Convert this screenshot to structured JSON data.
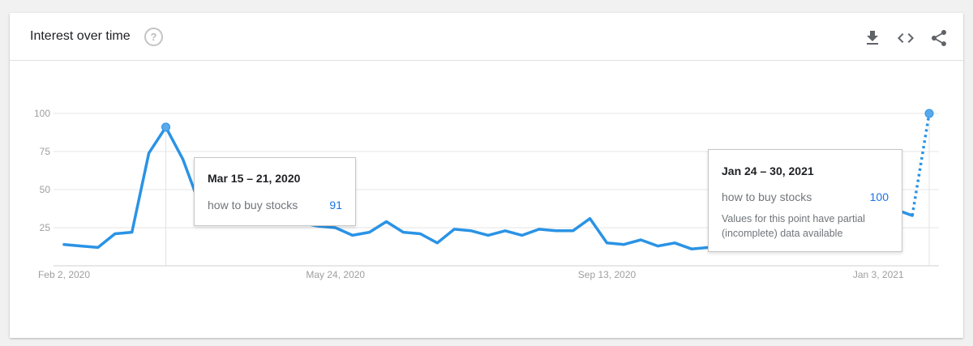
{
  "header": {
    "title": "Interest over time",
    "help_icon": "help-circle-icon",
    "actions": [
      {
        "name": "download-icon"
      },
      {
        "name": "embed-code-icon"
      },
      {
        "name": "share-icon"
      }
    ]
  },
  "colors": {
    "line": "#2a93e5",
    "grid": "#e6e6e6",
    "axis_text": "#9e9e9e",
    "tooltip_value": "#1a73e8"
  },
  "chart_data": {
    "type": "line",
    "title": "",
    "xlabel": "",
    "ylabel": "",
    "ylim": [
      0,
      100
    ],
    "yticks": [
      25,
      50,
      75,
      100
    ],
    "grid": true,
    "x_tick_labels": [
      {
        "label": "Feb 2, 2020",
        "week": "2020-02-02"
      },
      {
        "label": "May 24, 2020",
        "week": "2020-05-24"
      },
      {
        "label": "Sep 13, 2020",
        "week": "2020-09-13"
      },
      {
        "label": "Jan 3, 2021",
        "week": "2021-01-03"
      }
    ],
    "series": [
      {
        "name": "how to buy stocks",
        "x": [
          "2020-02-02",
          "2020-02-09",
          "2020-02-16",
          "2020-02-23",
          "2020-03-01",
          "2020-03-08",
          "2020-03-15",
          "2020-03-22",
          "2020-03-29",
          "2020-04-05",
          "2020-04-12",
          "2020-04-19",
          "2020-04-26",
          "2020-05-03",
          "2020-05-10",
          "2020-05-17",
          "2020-05-24",
          "2020-05-31",
          "2020-06-07",
          "2020-06-14",
          "2020-06-21",
          "2020-06-28",
          "2020-07-05",
          "2020-07-12",
          "2020-07-19",
          "2020-07-26",
          "2020-08-02",
          "2020-08-09",
          "2020-08-16",
          "2020-08-23",
          "2020-08-30",
          "2020-09-06",
          "2020-09-13",
          "2020-09-20",
          "2020-09-27",
          "2020-10-04",
          "2020-10-11",
          "2020-10-18",
          "2020-10-25",
          "2020-11-01",
          "2020-11-08",
          "2020-11-15",
          "2020-11-22",
          "2020-11-29",
          "2020-12-06",
          "2020-12-13",
          "2020-12-20",
          "2020-12-27",
          "2021-01-03",
          "2021-01-10",
          "2021-01-17",
          "2021-01-24"
        ],
        "values": [
          14,
          13,
          12,
          21,
          22,
          74,
          91,
          70,
          40,
          35,
          39,
          56,
          34,
          30,
          28,
          26,
          25,
          20,
          22,
          29,
          22,
          21,
          15,
          24,
          23,
          20,
          23,
          20,
          24,
          23,
          23,
          31,
          15,
          14,
          17,
          13,
          15,
          11,
          12,
          12,
          12,
          15,
          18,
          20,
          17,
          22,
          24,
          24,
          28,
          37,
          33,
          100
        ],
        "partial_from_index": 50
      }
    ],
    "highlights": [
      {
        "index": 6,
        "date_label": "Mar 15 – 21, 2020",
        "term": "how to buy stocks",
        "value": "91"
      },
      {
        "index": 51,
        "date_label": "Jan 24 – 30, 2021",
        "term": "how to buy stocks",
        "value": "100",
        "note": "Values for this point have partial (incomplete) data available"
      }
    ]
  }
}
